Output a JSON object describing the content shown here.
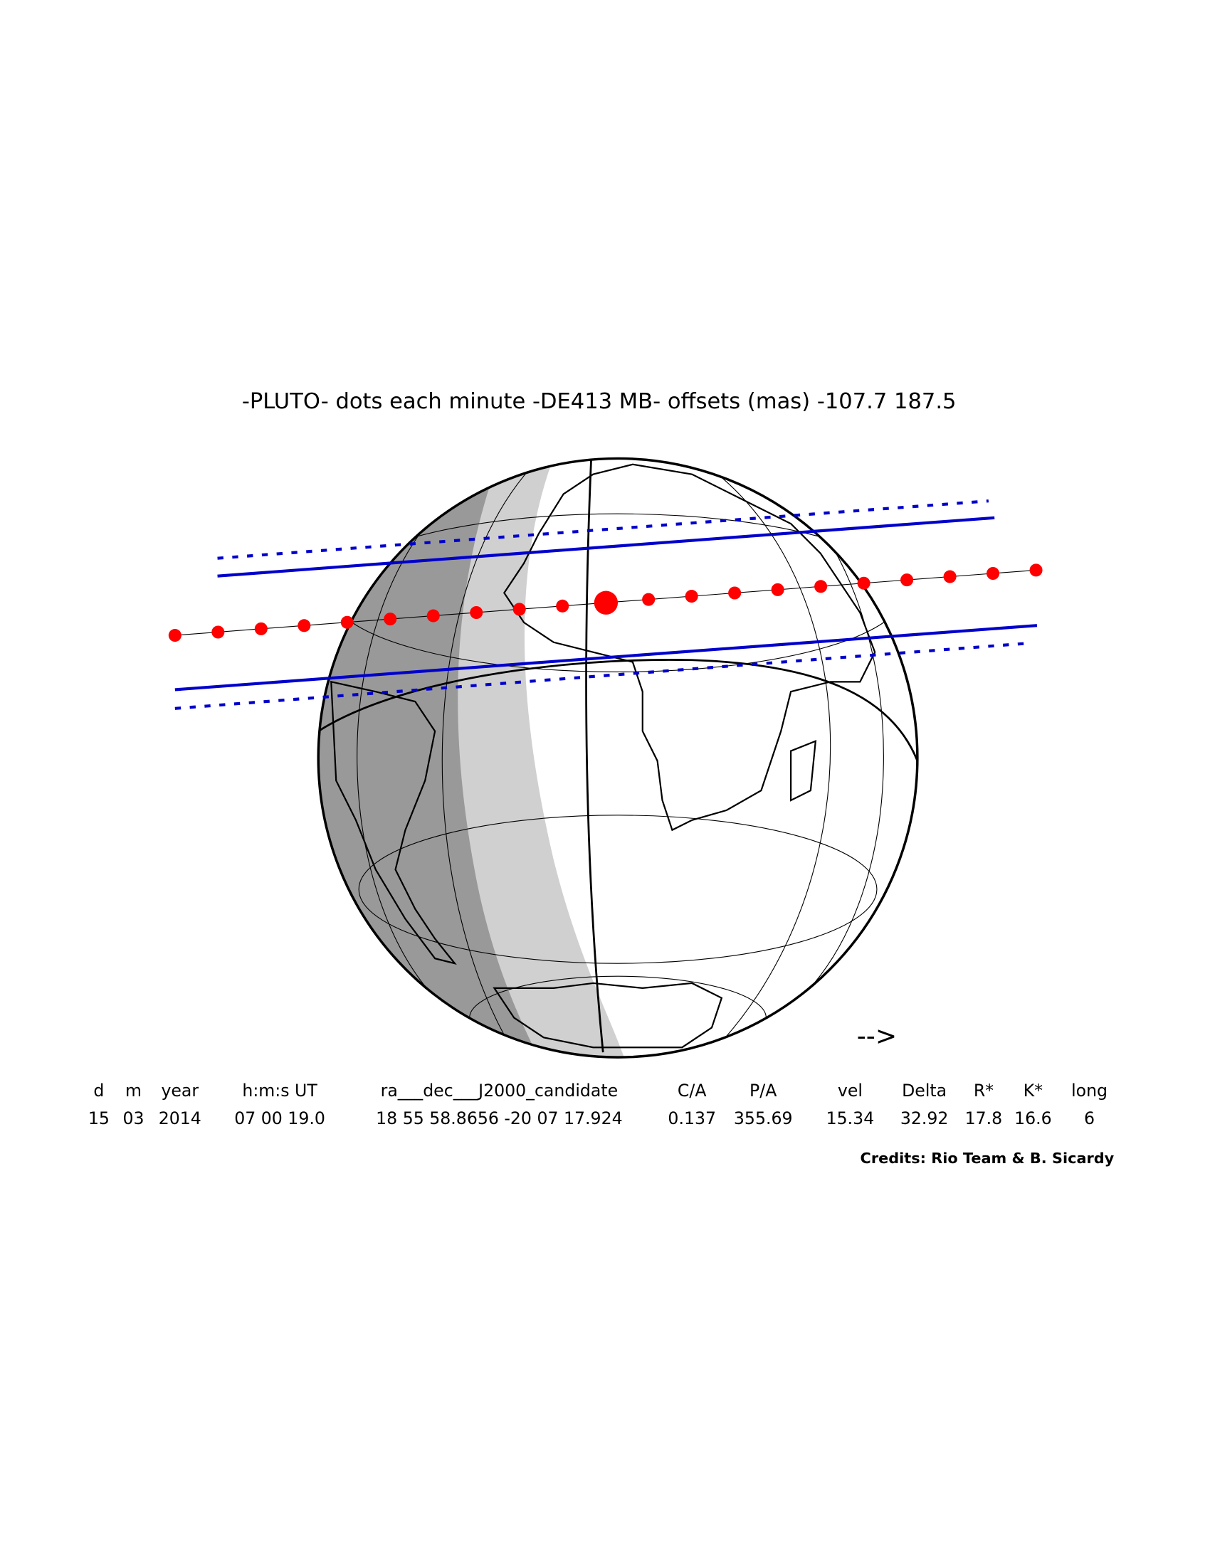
{
  "title": "-PLUTO- dots each minute -DE413 MB- offsets (mas) -107.7  187.5",
  "arrow": "-->",
  "table": {
    "header": [
      "d",
      "m",
      "year",
      "h:m:s UT",
      "ra___dec___J2000_candidate",
      "C/A",
      "P/A",
      "vel",
      "Delta",
      "R*",
      "K*",
      "long"
    ],
    "row": [
      "15",
      "03",
      "2014",
      "07 00 19.0",
      "18 55 58.8656 -20 07 17.924",
      "0.137",
      "355.69",
      "15.34",
      "32.92",
      "17.8",
      "16.6",
      "6"
    ]
  },
  "credits": "Credits: Rio Team & B. Sicardy"
}
